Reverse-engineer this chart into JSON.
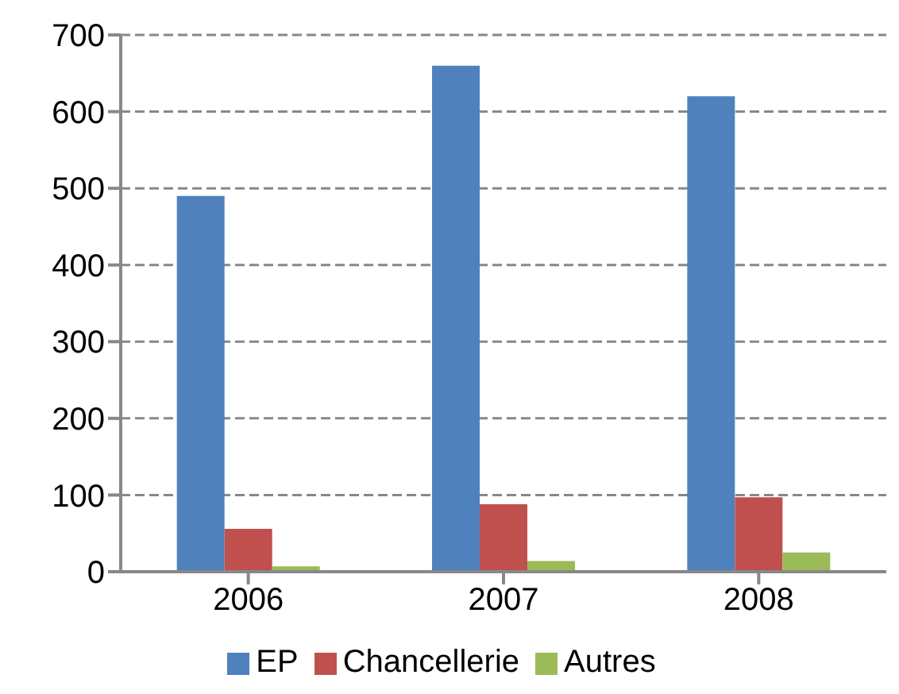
{
  "chart_data": {
    "type": "bar",
    "categories": [
      "2006",
      "2007",
      "2008"
    ],
    "series": [
      {
        "name": "EP",
        "color": "#4f81bd",
        "values": [
          490,
          660,
          620
        ]
      },
      {
        "name": "Chancellerie",
        "color": "#c0504d",
        "values": [
          56,
          88,
          97
        ]
      },
      {
        "name": "Autres",
        "color": "#9bbb59",
        "values": [
          7,
          14,
          25
        ]
      }
    ],
    "ylim": [
      0,
      700
    ],
    "yticks": [
      0,
      100,
      200,
      300,
      400,
      500,
      600,
      700
    ],
    "grid": "y",
    "legend": "bottom"
  }
}
